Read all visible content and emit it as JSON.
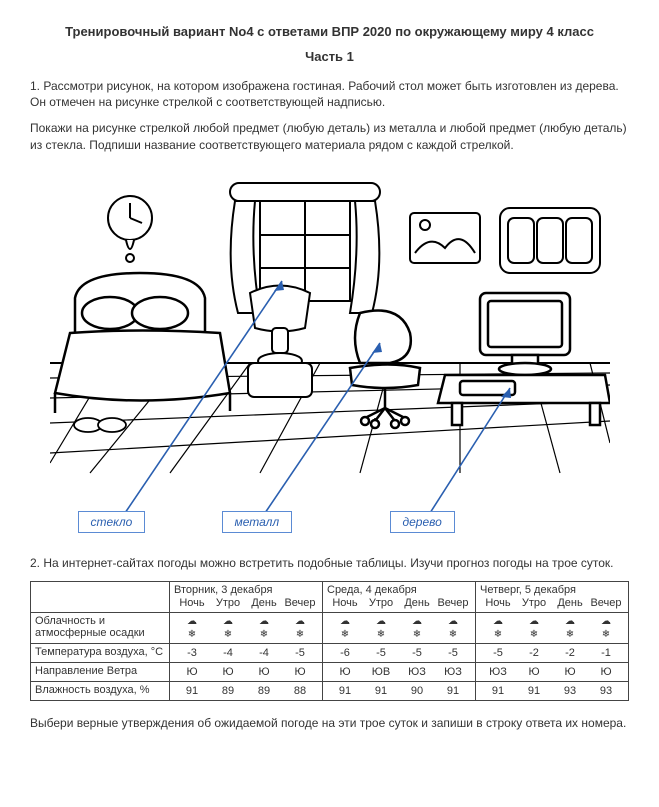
{
  "title": "Тренировочный вариант No4 с ответами ВПР 2020 по окружающему миру 4 класс",
  "part": "Часть 1",
  "q1a": "1. Рассмотри рисунок, на котором изображена гостиная. Рабочий стол может быть изготовлен из дерева. Он отмечен на рисунке стрелкой с соответствующей надписью.",
  "q1b": "Покажи на рисунке стрелкой любой предмет (любую деталь) из металла и любой предмет (любую деталь) из стекла. Подпиши название соответствующего материала рядом с каждой стрелкой.",
  "labels": {
    "glass": "стекло",
    "metal": "металл",
    "wood": "дерево"
  },
  "q2": "2. На интернет-сайтах погоды можно встретить подобные таблицы. Изучи прогноз погоды на трое суток.",
  "q2foot": "Выбери верные утверждения об ожидаемой погоде на эти трое суток и запиши в строку ответа их номера.",
  "table": {
    "days": [
      "Вторник, 3 декабря",
      "Среда, 4 декабря",
      "Четверг, 5 декабря"
    ],
    "times": [
      "Ночь",
      "Утро",
      "День",
      "Вечер"
    ],
    "rows": {
      "clouds": "Облачность и атмосферные осадки",
      "temp": "Температура воздуха, °C",
      "wind": "Направление Ветра",
      "hum": "Влажность воздуха, %"
    },
    "cloud_top": "☁",
    "cloud_bot": "❄",
    "temp_vals": [
      [
        "-3",
        "-4",
        "-4",
        "-5"
      ],
      [
        "-6",
        "-5",
        "-5",
        "-5"
      ],
      [
        "-5",
        "-2",
        "-2",
        "-1"
      ]
    ],
    "wind_vals": [
      [
        "Ю",
        "Ю",
        "Ю",
        "Ю"
      ],
      [
        "Ю",
        "ЮВ",
        "ЮЗ",
        "ЮЗ"
      ],
      [
        "ЮЗ",
        "Ю",
        "Ю",
        "Ю"
      ]
    ],
    "hum_vals": [
      [
        "91",
        "89",
        "89",
        "88"
      ],
      [
        "91",
        "91",
        "90",
        "91"
      ],
      [
        "91",
        "91",
        "93",
        "93"
      ]
    ]
  },
  "colors": {
    "link": "#2a5fb0",
    "border": "#5b8bd4"
  }
}
